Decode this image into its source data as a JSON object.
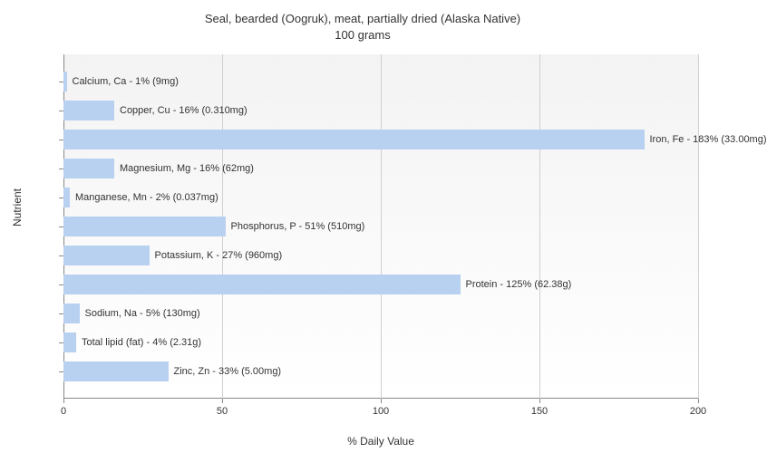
{
  "chart": {
    "type": "bar",
    "title_line1": "Seal, bearded (Oogruk), meat, partially dried (Alaska Native)",
    "title_line2": "100 grams",
    "title_fontsize": 13,
    "xlabel": "% Daily Value",
    "ylabel": "Nutrient",
    "label_fontsize": 12,
    "xlim": [
      0,
      200
    ],
    "xtick_step": 50,
    "xticks": [
      0,
      50,
      100,
      150,
      200
    ],
    "background_color": "#ffffff",
    "plot_background_gradient": [
      "#f3f3f3",
      "#ffffff"
    ],
    "grid_color": "#d0d0d0",
    "axis_color": "#888888",
    "bar_color": "#b9d1f0",
    "bar_border_color": "#b9d1f0",
    "text_color": "#333333",
    "bar_label_fontsize": 11,
    "tick_fontsize": 11,
    "nutrients": [
      {
        "label": "Calcium, Ca - 1% (9mg)",
        "value": 1
      },
      {
        "label": "Copper, Cu - 16% (0.310mg)",
        "value": 16
      },
      {
        "label": "Iron, Fe - 183% (33.00mg)",
        "value": 183
      },
      {
        "label": "Magnesium, Mg - 16% (62mg)",
        "value": 16
      },
      {
        "label": "Manganese, Mn - 2% (0.037mg)",
        "value": 2
      },
      {
        "label": "Phosphorus, P - 51% (510mg)",
        "value": 51
      },
      {
        "label": "Potassium, K - 27% (960mg)",
        "value": 27
      },
      {
        "label": "Protein - 125% (62.38g)",
        "value": 125
      },
      {
        "label": "Sodium, Na - 5% (130mg)",
        "value": 5
      },
      {
        "label": "Total lipid (fat) - 4% (2.31g)",
        "value": 4
      },
      {
        "label": "Zinc, Zn - 33% (5.00mg)",
        "value": 33
      }
    ]
  }
}
